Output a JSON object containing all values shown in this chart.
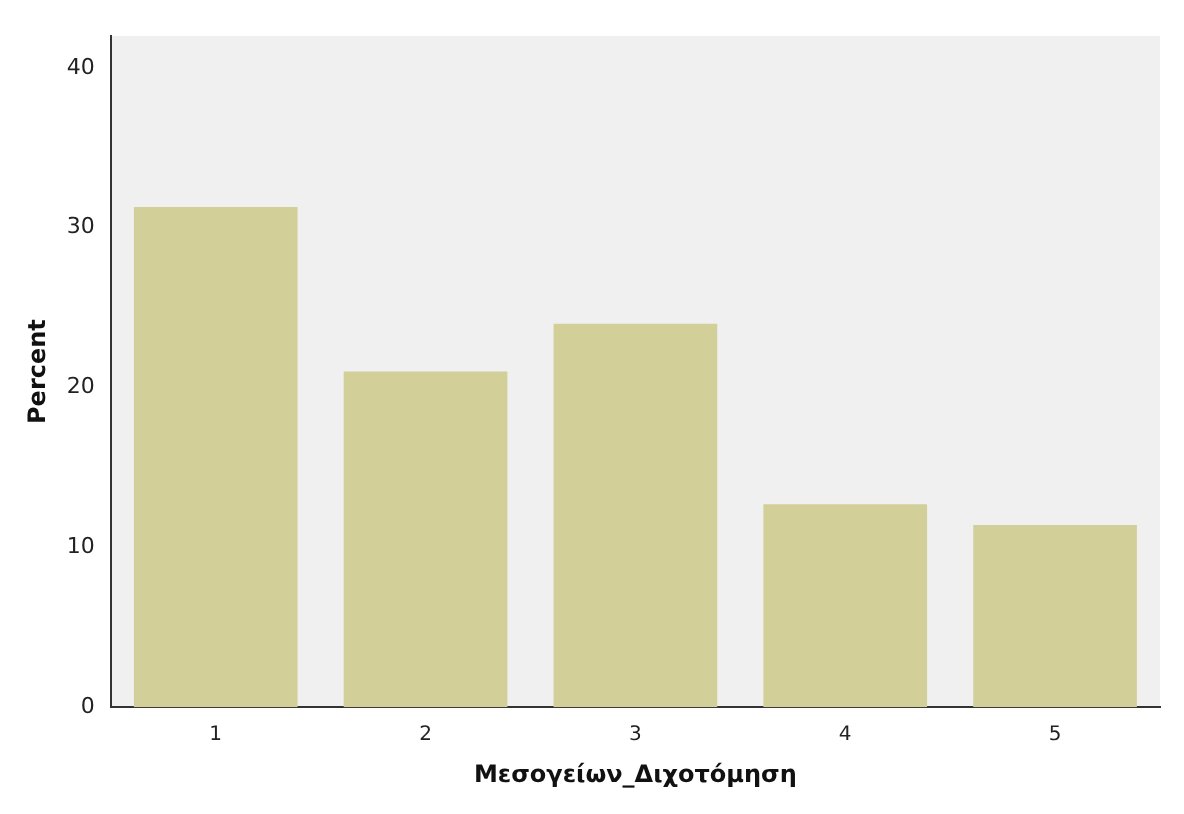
{
  "chart_data": {
    "type": "bar",
    "xlabel": "Μεσογείων_Διχοτόμηση",
    "ylabel": "Percent",
    "categories": [
      "1",
      "2",
      "3",
      "4",
      "5"
    ],
    "values": [
      31.3,
      21.0,
      24.0,
      12.7,
      11.4
    ],
    "color": "#d3cf98",
    "ylim": [
      0,
      42
    ],
    "yticks": [
      0,
      10,
      20,
      30,
      40
    ],
    "grid": false
  }
}
